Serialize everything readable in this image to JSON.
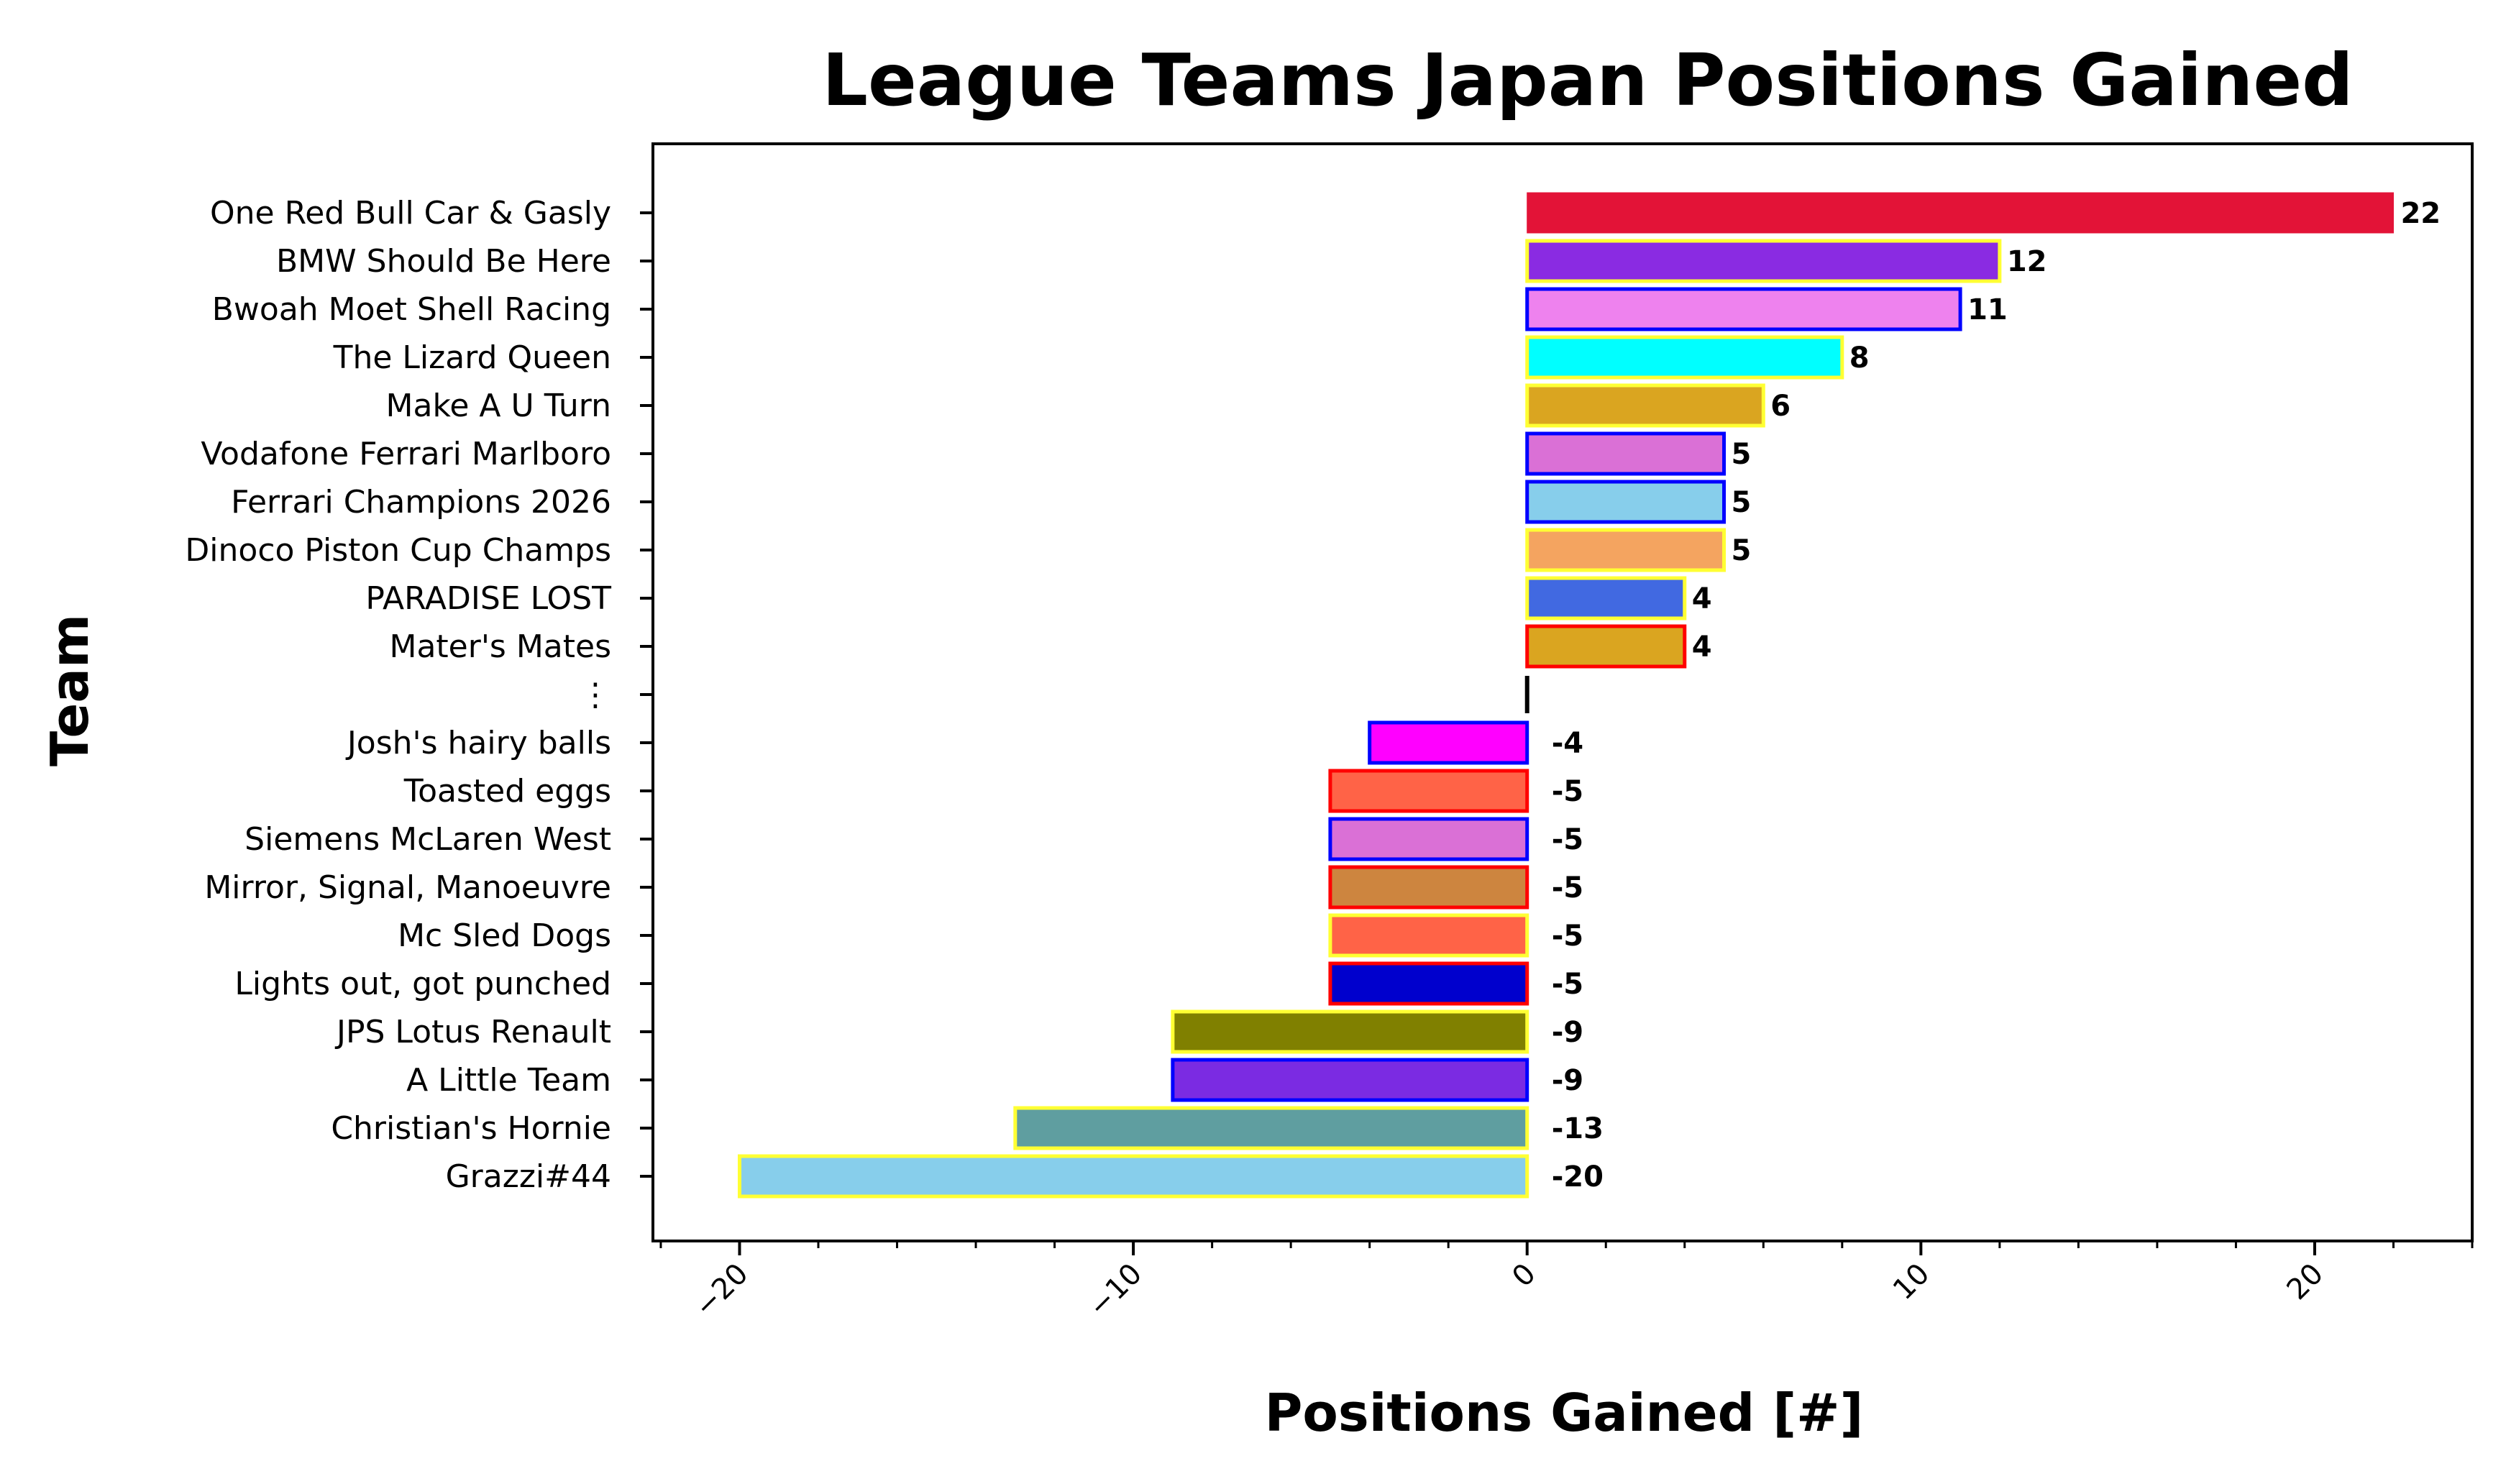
{
  "chart_data": {
    "type": "bar",
    "orientation": "horizontal",
    "title": "League Teams Japan Positions Gained",
    "xlabel": "Positions Gained [#]",
    "ylabel": "Team",
    "xlim": [
      -22.2,
      24
    ],
    "xticks": [
      -20,
      -10,
      0,
      10,
      20
    ],
    "xtick_labels": [
      "−20",
      "−10",
      "0",
      "10",
      "20"
    ],
    "xtick_rotation": -45,
    "grid": false,
    "legend": "none",
    "bars": [
      {
        "label": "One Red Bull Car & Gasly",
        "value": 22,
        "value_label": "22",
        "fill": "#e31337",
        "edge": "#e31337"
      },
      {
        "label": "BMW Should Be Here",
        "value": 12,
        "value_label": "12",
        "fill": "#8a2be2",
        "edge": "#ffff33"
      },
      {
        "label": "Bwoah Moet Shell Racing",
        "value": 11,
        "value_label": "11",
        "fill": "#ee82ee",
        "edge": "#0000ff"
      },
      {
        "label": "The Lizard Queen",
        "value": 8,
        "value_label": "8",
        "fill": "#00ffff",
        "edge": "#ffff33"
      },
      {
        "label": "Make A U Turn",
        "value": 6,
        "value_label": "6",
        "fill": "#daa520",
        "edge": "#ffff33"
      },
      {
        "label": "Vodafone Ferrari Marlboro",
        "value": 5,
        "value_label": "5",
        "fill": "#da70d6",
        "edge": "#0000ff"
      },
      {
        "label": "Ferrari Champions 2026",
        "value": 5,
        "value_label": "5",
        "fill": "#87ceeb",
        "edge": "#0000ff"
      },
      {
        "label": "Dinoco Piston Cup Champs",
        "value": 5,
        "value_label": "5",
        "fill": "#f4a460",
        "edge": "#ffff33"
      },
      {
        "label": "PARADISE LOST",
        "value": 4,
        "value_label": "4",
        "fill": "#4169e1",
        "edge": "#ffff33"
      },
      {
        "label": "Mater's Mates",
        "value": 4,
        "value_label": "4",
        "fill": "#daa520",
        "edge": "#ff0000"
      },
      {
        "label": "⋮",
        "value": 0,
        "value_label": "",
        "fill": "#000000",
        "edge": "#000000",
        "separator": true
      },
      {
        "label": "Josh's hairy balls",
        "value": -4,
        "value_label": "-4",
        "fill": "#ff00ff",
        "edge": "#0000ff"
      },
      {
        "label": "Toasted eggs",
        "value": -5,
        "value_label": "-5",
        "fill": "#ff6347",
        "edge": "#ff0000"
      },
      {
        "label": "Siemens McLaren West",
        "value": -5,
        "value_label": "-5",
        "fill": "#da70d6",
        "edge": "#0000ff"
      },
      {
        "label": "Mirror, Signal, Manoeuvre",
        "value": -5,
        "value_label": "-5",
        "fill": "#cd853f",
        "edge": "#ff0000"
      },
      {
        "label": "Mc Sled Dogs",
        "value": -5,
        "value_label": "-5",
        "fill": "#ff6347",
        "edge": "#ffff33"
      },
      {
        "label": "Lights out, got punched",
        "value": -5,
        "value_label": "-5",
        "fill": "#0000cd",
        "edge": "#ff0000"
      },
      {
        "label": "JPS Lotus Renault",
        "value": -9,
        "value_label": "-9",
        "fill": "#808000",
        "edge": "#ffff33"
      },
      {
        "label": "A Little Team",
        "value": -9,
        "value_label": "-9",
        "fill": "#7b2be2",
        "edge": "#0000ff"
      },
      {
        "label": "Christian's Hornie",
        "value": -13,
        "value_label": "-13",
        "fill": "#5f9ea0",
        "edge": "#ffff33"
      },
      {
        "label": "Grazzi#44",
        "value": -20,
        "value_label": "-20",
        "fill": "#87ceeb",
        "edge": "#ffff33"
      }
    ]
  }
}
